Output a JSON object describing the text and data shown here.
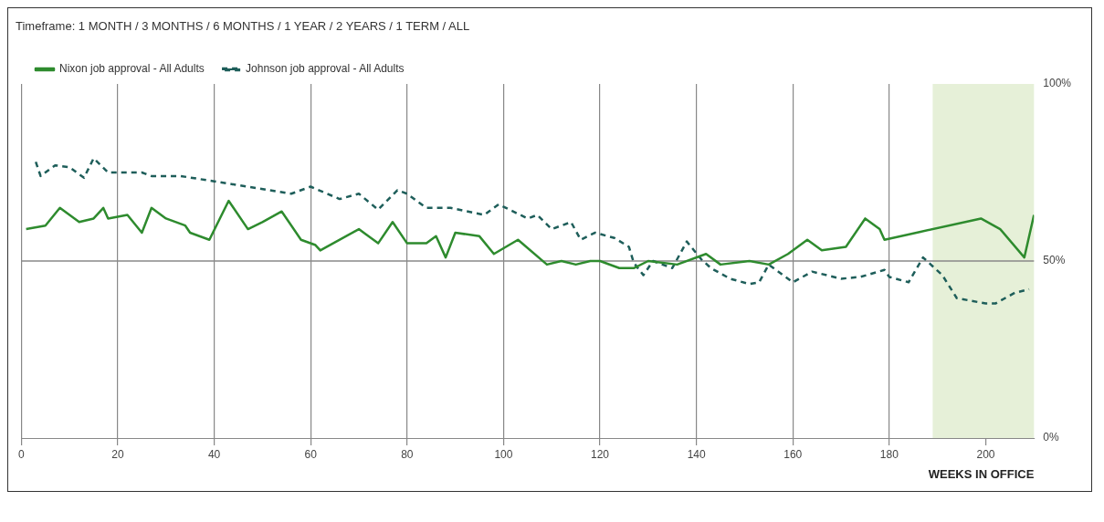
{
  "chart_data": {
    "type": "line",
    "annotations": [
      "Timeframe: 1 MONTH / 3 MONTHS / 6 MONTHS / 1 YEAR / 2 YEARS / 1 TERM / ALL"
    ],
    "xlabel": "WEEKS IN OFFICE",
    "xlim": [
      0,
      210
    ],
    "xticks": [
      0,
      20,
      40,
      60,
      80,
      100,
      120,
      140,
      160,
      180,
      200
    ],
    "ylim": [
      0,
      100
    ],
    "yticks": [
      {
        "value": 0,
        "label": "0%"
      },
      {
        "value": 50,
        "label": "50%"
      },
      {
        "value": 100,
        "label": "100%"
      }
    ],
    "grid": "x",
    "ref_lines": [
      {
        "axis": "y",
        "value": 50,
        "color": "#888888"
      }
    ],
    "legend": "top left",
    "marker": "none",
    "bands": [
      {
        "axis": "x",
        "from": 189,
        "to": 210,
        "color": "#e6f0d8"
      }
    ],
    "series": [
      {
        "name": "Nixon job approval - All Adults",
        "color": "#2e8b2e",
        "line_style": "solid",
        "x": [
          1,
          5,
          8,
          12,
          15,
          17,
          18,
          22,
          25,
          27,
          30,
          34,
          35,
          39,
          43,
          47,
          50,
          54,
          58,
          61,
          62,
          70,
          74,
          77,
          80,
          84,
          86,
          88,
          90,
          95,
          98,
          103,
          109,
          112,
          115,
          118,
          120,
          124,
          127,
          130,
          136,
          142,
          145,
          151,
          155,
          159,
          163,
          166,
          171,
          175,
          178,
          179,
          199,
          203,
          208,
          210
        ],
        "values": [
          59,
          60,
          65,
          61,
          62,
          65,
          62,
          63,
          58,
          65,
          62,
          60,
          58,
          56,
          67,
          59,
          61,
          64,
          56,
          54.5,
          53,
          59,
          55,
          61,
          55,
          55,
          57,
          51,
          58,
          57,
          52,
          56,
          49,
          50,
          49,
          50,
          50,
          48,
          48,
          50,
          49,
          52,
          49,
          50,
          49,
          52,
          56,
          53,
          54,
          62,
          59,
          56,
          62,
          59,
          51,
          63
        ]
      },
      {
        "name": "Johnson job approval - All Adults",
        "color": "#1e5e5a",
        "line_style": "dashed",
        "x": [
          3,
          4,
          7,
          10,
          13,
          15,
          18,
          25,
          27,
          33,
          40,
          56,
          60,
          66,
          70,
          74,
          78,
          80,
          84,
          89,
          96,
          99,
          105,
          107,
          110,
          114,
          116,
          119,
          123,
          126,
          127,
          129,
          131,
          135,
          138,
          141,
          143,
          147,
          151,
          153,
          155,
          160,
          164,
          170,
          174,
          179,
          180,
          184,
          187,
          191,
          194,
          200,
          202,
          206,
          209
        ],
        "values": [
          78,
          74,
          77,
          76.5,
          73.5,
          79,
          75,
          75,
          74,
          74,
          72.5,
          69,
          71,
          67.5,
          69,
          64.5,
          70,
          69,
          65,
          65,
          63,
          66,
          62,
          63,
          59,
          61,
          56,
          58,
          56.5,
          54,
          49.5,
          46,
          50,
          48,
          55.5,
          50.5,
          48,
          45,
          43.5,
          44,
          49,
          44,
          47,
          45,
          45.5,
          47.5,
          45.5,
          44,
          51,
          46,
          39.5,
          38,
          38,
          41,
          42
        ]
      }
    ]
  }
}
